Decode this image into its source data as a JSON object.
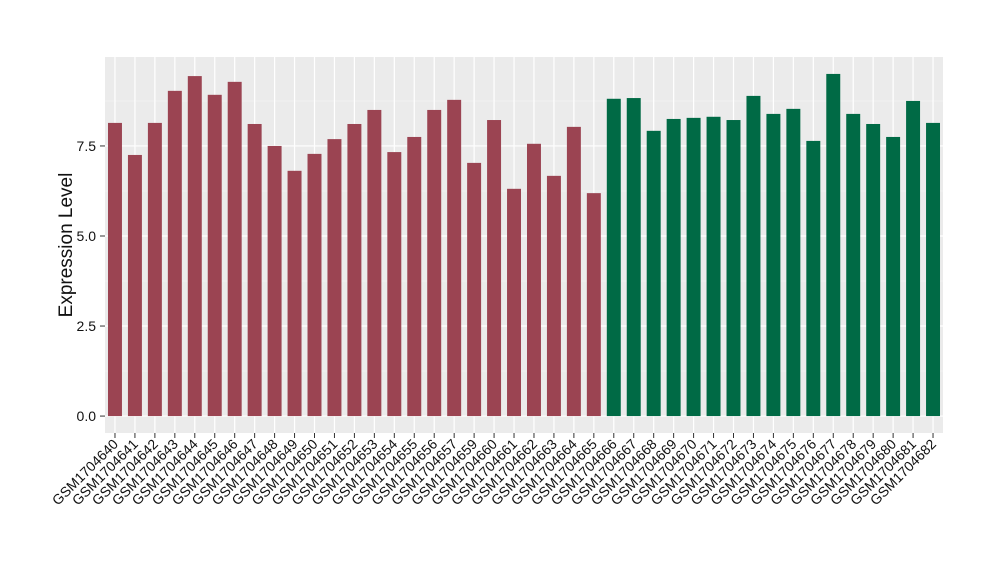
{
  "chart_data": {
    "type": "bar",
    "y_label": "Expression Level",
    "categories": [
      "GSM1704640",
      "GSM1704641",
      "GSM1704642",
      "GSM1704643",
      "GSM1704644",
      "GSM1704645",
      "GSM1704646",
      "GSM1704647",
      "GSM1704648",
      "GSM1704649",
      "GSM1704650",
      "GSM1704651",
      "GSM1704652",
      "GSM1704653",
      "GSM1704654",
      "GSM1704655",
      "GSM1704656",
      "GSM1704657",
      "GSM1704659",
      "GSM1704660",
      "GSM1704661",
      "GSM1704662",
      "GSM1704663",
      "GSM1704664",
      "GSM1704665",
      "GSM1704666",
      "GSM1704667",
      "GSM1704668",
      "GSM1704669",
      "GSM1704670",
      "GSM1704671",
      "GSM1704672",
      "GSM1704673",
      "GSM1704674",
      "GSM1704675",
      "GSM1704676",
      "GSM1704677",
      "GSM1704678",
      "GSM1704679",
      "GSM1704680",
      "GSM1704681",
      "GSM1704682"
    ],
    "values": [
      8.14,
      7.25,
      8.14,
      9.03,
      9.44,
      8.92,
      9.28,
      8.11,
      7.5,
      6.81,
      7.28,
      7.69,
      8.11,
      8.5,
      7.33,
      7.75,
      8.5,
      8.78,
      7.03,
      8.22,
      6.31,
      7.56,
      6.67,
      8.03,
      6.19,
      8.81,
      8.83,
      7.92,
      8.25,
      8.28,
      8.31,
      8.22,
      8.89,
      8.39,
      8.53,
      7.64,
      9.5,
      8.39,
      8.11,
      7.75,
      8.75,
      8.14
    ],
    "colors": [
      "#9b4452",
      "#9b4452",
      "#9b4452",
      "#9b4452",
      "#9b4452",
      "#9b4452",
      "#9b4452",
      "#9b4452",
      "#9b4452",
      "#9b4452",
      "#9b4452",
      "#9b4452",
      "#9b4452",
      "#9b4452",
      "#9b4452",
      "#9b4452",
      "#9b4452",
      "#9b4452",
      "#9b4452",
      "#9b4452",
      "#9b4452",
      "#9b4452",
      "#9b4452",
      "#9b4452",
      "#9b4452",
      "#006a45",
      "#006a45",
      "#006a45",
      "#006a45",
      "#006a45",
      "#006a45",
      "#006a45",
      "#006a45",
      "#006a45",
      "#006a45",
      "#006a45",
      "#006a45",
      "#006a45",
      "#006a45",
      "#006a45",
      "#006a45",
      "#006a45"
    ],
    "ylim": [
      -0.47,
      9.97
    ],
    "yticks": [
      {
        "value": 0,
        "label": "0.0"
      },
      2.5,
      {
        "value": 5,
        "label": "5.0"
      },
      7.5
    ],
    "grid": true
  }
}
